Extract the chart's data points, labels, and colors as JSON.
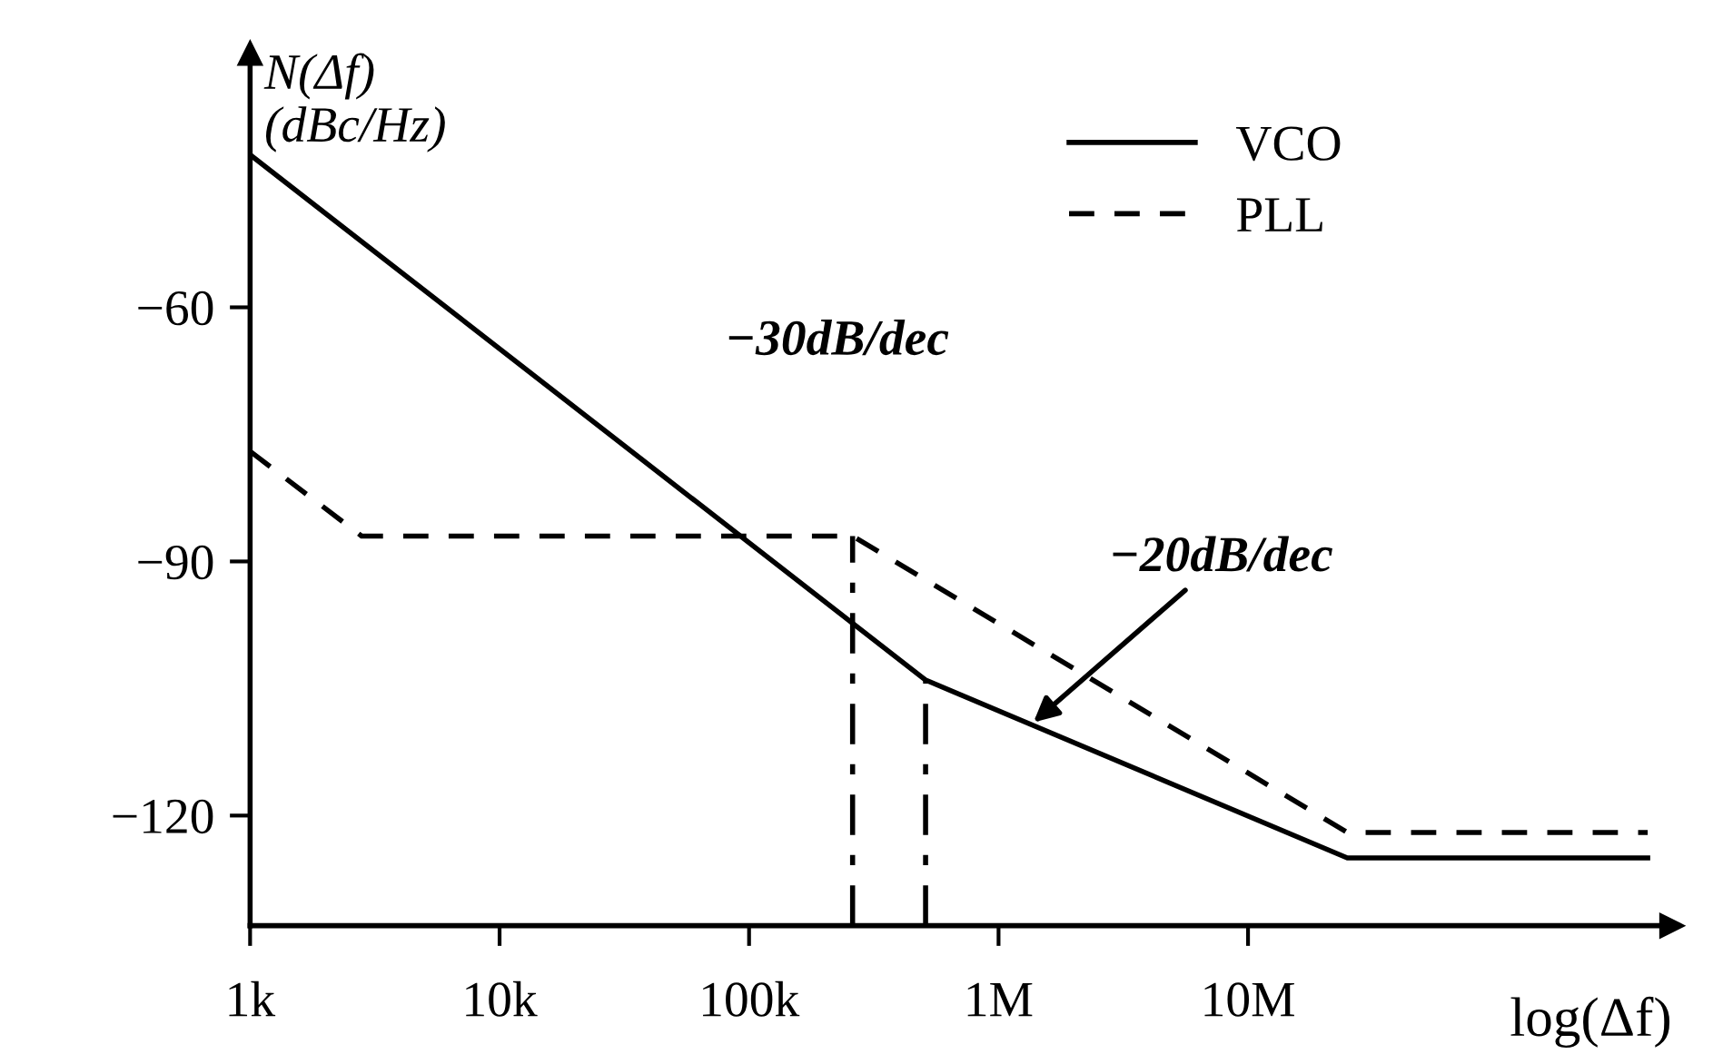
{
  "chart_data": {
    "type": "line",
    "xlabel": "log(Δf)",
    "ylabel": "N(Δf)\n(dBc/Hz)",
    "log": "x",
    "xlim": [
      1000,
      500000000
    ],
    "ylim": [
      -133,
      -30
    ],
    "xticks": [
      {
        "value": 1000,
        "label": "1k"
      },
      {
        "value": 10000,
        "label": "10k"
      },
      {
        "value": 100000,
        "label": "100k"
      },
      {
        "value": 1000000,
        "label": "1M"
      },
      {
        "value": 10000000,
        "label": "10M"
      }
    ],
    "yticks": [
      {
        "value": -60,
        "label": "−60"
      },
      {
        "value": -90,
        "label": "−90"
      },
      {
        "value": -120,
        "label": "−120"
      }
    ],
    "grid": false,
    "legend": "top right",
    "marker": "none",
    "series": [
      {
        "name": "VCO",
        "color": "#000000",
        "line_style": "solid",
        "x": [
          1000,
          510000,
          25000000,
          400000000
        ],
        "values": [
          -42,
          -104,
          -125,
          -125
        ]
      },
      {
        "name": "PLL",
        "color": "#000000",
        "line_style": "dashed",
        "x": [
          1000,
          2800,
          260000,
          25000000,
          400000000
        ],
        "values": [
          -77,
          -87,
          -87,
          -122,
          -122
        ]
      },
      {
        "color": "#000000",
        "line_style": "dashdot",
        "x": [
          260000,
          260000
        ],
        "values": [
          -133,
          -87
        ]
      },
      {
        "color": "#000000",
        "line_style": "dashdot",
        "x": [
          510000,
          510000
        ],
        "values": [
          -133,
          -104
        ]
      }
    ],
    "annotations": [
      {
        "text": "−30dB/dec",
        "x": 31600,
        "y": -76
      },
      {
        "text": "−20dB/dec",
        "x": 1380000,
        "y": -109
      }
    ]
  }
}
